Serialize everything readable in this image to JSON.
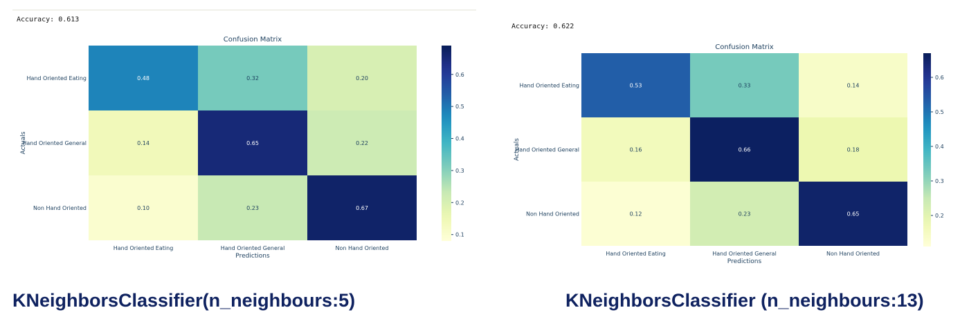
{
  "colors": {
    "text": "#1a3d5c",
    "caption": "#0f2260",
    "scale": [
      "#ffffd9",
      "#edf8b1",
      "#c7e9b4",
      "#7fcdbb",
      "#41b6c4",
      "#1d91c0",
      "#225ea8",
      "#253494",
      "#081d58"
    ]
  },
  "panels": [
    {
      "accuracy": "Accuracy: 0.613",
      "caption": "KNeighborsClassifier(n_neighbours:5)",
      "chart_data": {
        "type": "heatmap",
        "title": "Confusion Matrix",
        "xlabel": "Predictions",
        "ylabel": "Actuals",
        "x_categories": [
          "Hand Oriented Eating",
          "Hand Oriented General",
          "Non Hand Oriented"
        ],
        "y_categories": [
          "Hand Oriented Eating",
          "Hand Oriented General",
          "Non Hand Oriented"
        ],
        "values": [
          [
            0.48,
            0.32,
            0.2
          ],
          [
            0.14,
            0.65,
            0.22
          ],
          [
            0.1,
            0.23,
            0.67
          ]
        ],
        "cell_labels": [
          [
            "0.48",
            "0.32",
            "0.20"
          ],
          [
            "0.14",
            "0.65",
            "0.22"
          ],
          [
            "0.10",
            "0.23",
            "0.67"
          ]
        ],
        "colorbar": {
          "min": 0.08,
          "max": 0.69,
          "ticks": [
            0.1,
            0.2,
            0.3,
            0.4,
            0.5,
            0.6
          ],
          "tick_labels": [
            "0.1",
            "0.2",
            "0.3",
            "0.4",
            "0.5",
            "0.6"
          ]
        }
      }
    },
    {
      "accuracy": "Accuracy: 0.622",
      "caption": "KNeighborsClassifier (n_neighbours:13)",
      "chart_data": {
        "type": "heatmap",
        "title": "Confusion Matrix",
        "xlabel": "Predictions",
        "ylabel": "Actuals",
        "x_categories": [
          "Hand Oriented Eating",
          "Hand Oriented General",
          "Non Hand Oriented"
        ],
        "y_categories": [
          "Hand Oriented Eating",
          "Hand Oriented General",
          "Non Hand Oriented"
        ],
        "values": [
          [
            0.53,
            0.33,
            0.14
          ],
          [
            0.16,
            0.66,
            0.18
          ],
          [
            0.12,
            0.23,
            0.65
          ]
        ],
        "cell_labels": [
          [
            "0.53",
            "0.33",
            "0.14"
          ],
          [
            "0.16",
            "0.66",
            "0.18"
          ],
          [
            "0.12",
            "0.23",
            "0.65"
          ]
        ],
        "colorbar": {
          "min": 0.11,
          "max": 0.67,
          "ticks": [
            0.2,
            0.3,
            0.4,
            0.5,
            0.6
          ],
          "tick_labels": [
            "0.2",
            "0.3",
            "0.4",
            "0.5",
            "0.6"
          ]
        }
      }
    }
  ]
}
